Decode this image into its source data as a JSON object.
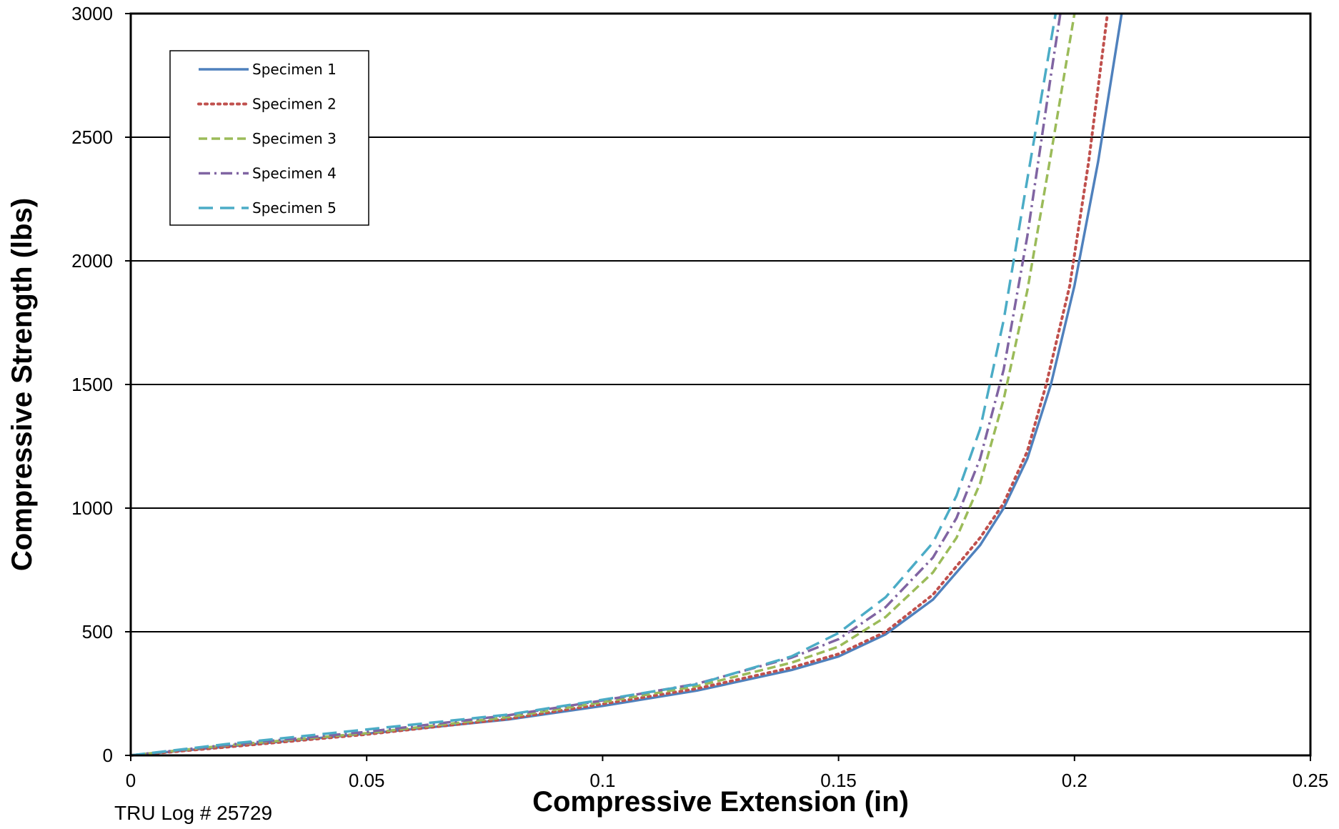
{
  "chart_data": {
    "type": "line",
    "title": "",
    "xlabel": "Compressive Extension (in)",
    "ylabel": "Compressive Strength (lbs)",
    "xlim": [
      0,
      0.25
    ],
    "ylim": [
      0,
      3000
    ],
    "x_ticks": [
      "0",
      "0.05",
      "0.1",
      "0.15",
      "0.2",
      "0.25"
    ],
    "y_ticks": [
      "0",
      "500",
      "1000",
      "1500",
      "2000",
      "2500",
      "3000"
    ],
    "grid": "horizontal major gridlines",
    "legend_position": "top-left",
    "series": [
      {
        "name": "Specimen 1",
        "color": "#4F81BD",
        "dash": "solid",
        "points": [
          [
            0,
            0
          ],
          [
            0.02,
            35
          ],
          [
            0.05,
            88
          ],
          [
            0.08,
            145
          ],
          [
            0.1,
            200
          ],
          [
            0.12,
            262
          ],
          [
            0.14,
            345
          ],
          [
            0.15,
            400
          ],
          [
            0.16,
            490
          ],
          [
            0.17,
            630
          ],
          [
            0.18,
            850
          ],
          [
            0.185,
            1000
          ],
          [
            0.19,
            1200
          ],
          [
            0.195,
            1500
          ],
          [
            0.2,
            1900
          ],
          [
            0.205,
            2400
          ],
          [
            0.21,
            3000
          ]
        ]
      },
      {
        "name": "Specimen 2",
        "color": "#C0504D",
        "dash": "dotted",
        "points": [
          [
            0,
            0
          ],
          [
            0.02,
            33
          ],
          [
            0.05,
            85
          ],
          [
            0.08,
            148
          ],
          [
            0.1,
            208
          ],
          [
            0.12,
            270
          ],
          [
            0.14,
            355
          ],
          [
            0.15,
            410
          ],
          [
            0.16,
            500
          ],
          [
            0.17,
            650
          ],
          [
            0.18,
            880
          ],
          [
            0.185,
            1020
          ],
          [
            0.19,
            1230
          ],
          [
            0.194,
            1500
          ],
          [
            0.199,
            1900
          ],
          [
            0.203,
            2400
          ],
          [
            0.207,
            3000
          ]
        ]
      },
      {
        "name": "Specimen 3",
        "color": "#9BBB59",
        "dash": "dashed",
        "points": [
          [
            0,
            0
          ],
          [
            0.02,
            40
          ],
          [
            0.05,
            90
          ],
          [
            0.08,
            155
          ],
          [
            0.1,
            215
          ],
          [
            0.12,
            280
          ],
          [
            0.14,
            375
          ],
          [
            0.15,
            440
          ],
          [
            0.16,
            560
          ],
          [
            0.17,
            740
          ],
          [
            0.175,
            880
          ],
          [
            0.18,
            1100
          ],
          [
            0.185,
            1440
          ],
          [
            0.19,
            1880
          ],
          [
            0.195,
            2430
          ],
          [
            0.2,
            3000
          ]
        ]
      },
      {
        "name": "Specimen 4",
        "color": "#8064A2",
        "dash": "dash-dot",
        "points": [
          [
            0,
            0
          ],
          [
            0.02,
            42
          ],
          [
            0.05,
            95
          ],
          [
            0.08,
            162
          ],
          [
            0.1,
            222
          ],
          [
            0.12,
            290
          ],
          [
            0.14,
            395
          ],
          [
            0.15,
            470
          ],
          [
            0.16,
            600
          ],
          [
            0.17,
            800
          ],
          [
            0.175,
            960
          ],
          [
            0.18,
            1200
          ],
          [
            0.185,
            1560
          ],
          [
            0.19,
            2100
          ],
          [
            0.195,
            2750
          ],
          [
            0.197,
            3000
          ]
        ]
      },
      {
        "name": "Specimen 5",
        "color": "#4BACC6",
        "dash": "long-dash",
        "points": [
          [
            0,
            0
          ],
          [
            0.02,
            45
          ],
          [
            0.05,
            105
          ],
          [
            0.08,
            165
          ],
          [
            0.1,
            225
          ],
          [
            0.12,
            288
          ],
          [
            0.14,
            400
          ],
          [
            0.15,
            495
          ],
          [
            0.16,
            640
          ],
          [
            0.17,
            860
          ],
          [
            0.175,
            1050
          ],
          [
            0.18,
            1320
          ],
          [
            0.185,
            1760
          ],
          [
            0.19,
            2330
          ],
          [
            0.196,
            3000
          ]
        ]
      }
    ]
  },
  "footer_note": "TRU Log # 25729"
}
